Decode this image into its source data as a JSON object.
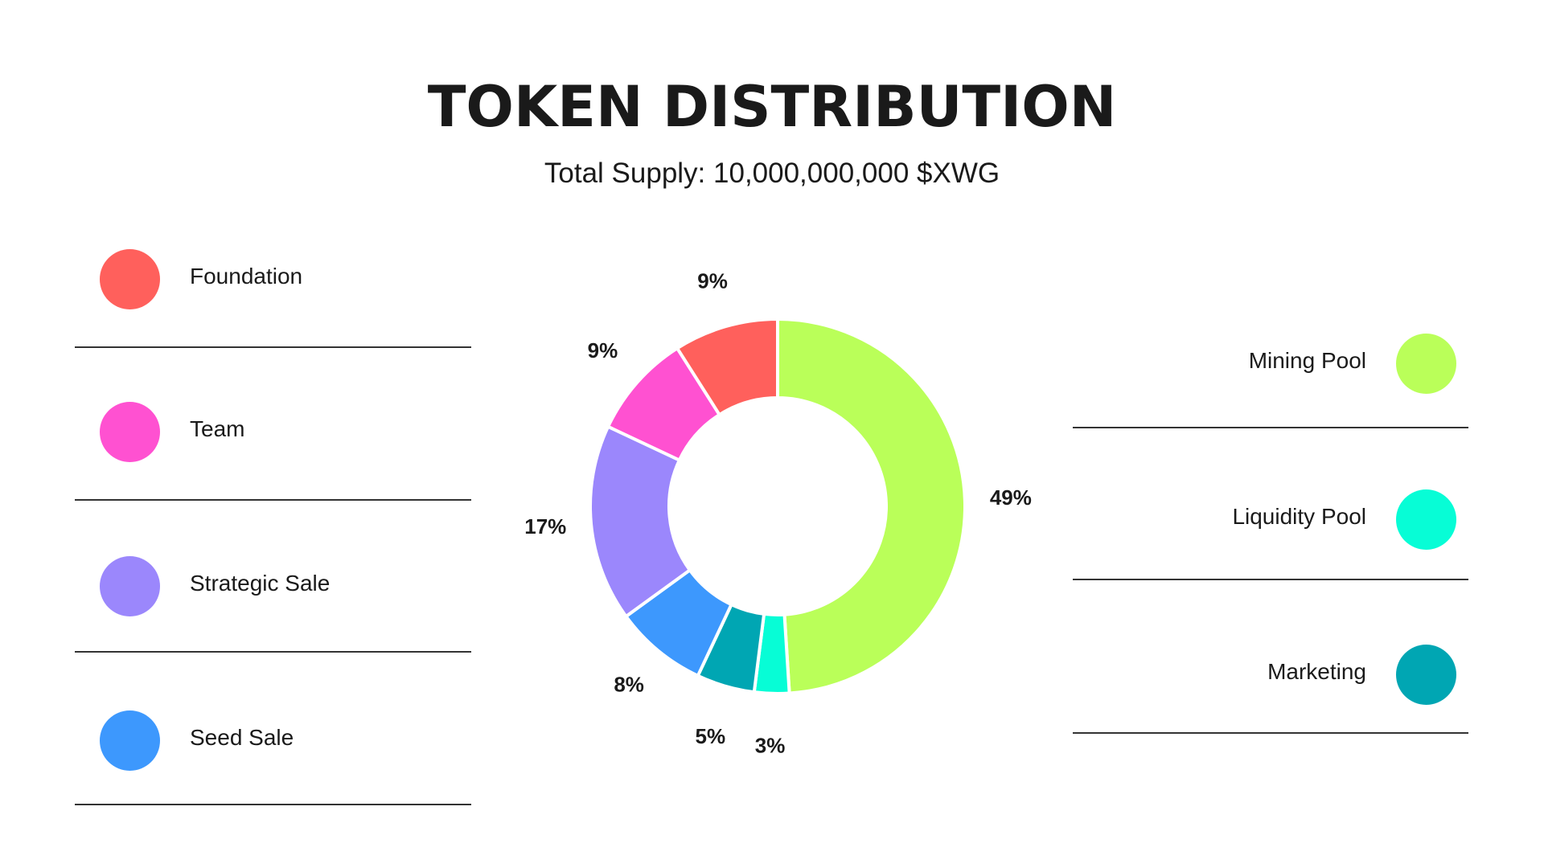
{
  "title": "TOKEN DISTRIBUTION",
  "subtitle": "Total Supply: 10,000,000,000 $XWG",
  "legend_left": [
    {
      "label": "Foundation",
      "color": "#ff605c"
    },
    {
      "label": "Team",
      "color": "#ff51d1"
    },
    {
      "label": "Strategic Sale",
      "color": "#9b87fc"
    },
    {
      "label": "Seed Sale",
      "color": "#3d98fd"
    }
  ],
  "legend_right": [
    {
      "label": "Mining Pool",
      "color": "#baff59"
    },
    {
      "label": "Liquidity Pool",
      "color": "#07fdd6"
    },
    {
      "label": "Marketing",
      "color": "#00a6b3"
    }
  ],
  "chart_data": {
    "type": "pie",
    "style": "donut",
    "title": "TOKEN DISTRIBUTION",
    "subtitle": "Total Supply: 10,000,000,000 $XWG",
    "slices": [
      {
        "label": "Mining Pool",
        "value": 49,
        "value_label": "49%",
        "color": "#baff59"
      },
      {
        "label": "Liquidity Pool",
        "value": 3,
        "value_label": "3%",
        "color": "#07fdd6"
      },
      {
        "label": "Marketing",
        "value": 5,
        "value_label": "5%",
        "color": "#00a6b3"
      },
      {
        "label": "Seed Sale",
        "value": 8,
        "value_label": "8%",
        "color": "#3d98fd"
      },
      {
        "label": "Strategic Sale",
        "value": 17,
        "value_label": "17%",
        "color": "#9b87fc"
      },
      {
        "label": "Team",
        "value": 9,
        "value_label": "9%",
        "color": "#ff51d1"
      },
      {
        "label": "Foundation",
        "value": 9,
        "value_label": "9%",
        "color": "#ff605c"
      }
    ],
    "legend": "left-and-right"
  }
}
